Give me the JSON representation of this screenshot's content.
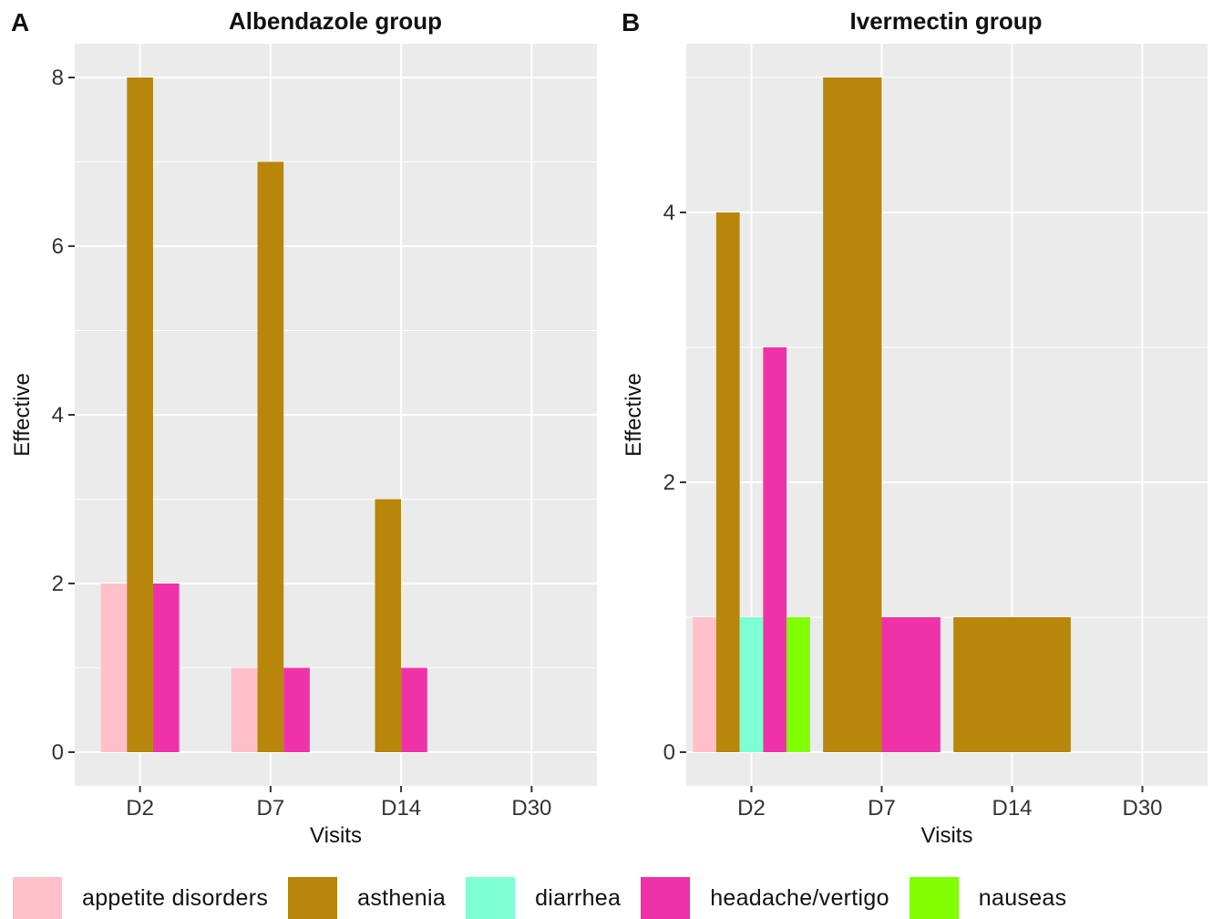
{
  "chart_data": [
    {
      "type": "bar",
      "panel_label": "A",
      "title": "Albendazole group",
      "xlabel": "Visits",
      "ylabel": "Effective",
      "categories": [
        "D2",
        "D7",
        "D14",
        "D30"
      ],
      "ylim": [
        -0.4,
        8.4
      ],
      "yticks": [
        0,
        2,
        4,
        6,
        8
      ],
      "grid": true,
      "bar_groups": [
        {
          "category": "D2",
          "bars": [
            {
              "series": "appetite disorders",
              "value": 2
            },
            {
              "series": "asthenia",
              "value": 8
            },
            {
              "series": "headache/vertigo",
              "value": 2
            }
          ]
        },
        {
          "category": "D7",
          "bars": [
            {
              "series": "appetite disorders",
              "value": 1
            },
            {
              "series": "asthenia",
              "value": 7
            },
            {
              "series": "headache/vertigo",
              "value": 1
            }
          ]
        },
        {
          "category": "D14",
          "bars": [
            {
              "series": "asthenia",
              "value": 3
            },
            {
              "series": "headache/vertigo",
              "value": 1
            }
          ]
        },
        {
          "category": "D30",
          "bars": []
        }
      ]
    },
    {
      "type": "bar",
      "panel_label": "B",
      "title": "Ivermectin group",
      "xlabel": "Visits",
      "ylabel": "Effective",
      "categories": [
        "D2",
        "D7",
        "D14",
        "D30"
      ],
      "ylim": [
        -0.25,
        5.25
      ],
      "yticks": [
        0,
        2,
        4
      ],
      "grid": true,
      "bar_groups": [
        {
          "category": "D2",
          "bars": [
            {
              "series": "appetite disorders",
              "value": 1
            },
            {
              "series": "asthenia",
              "value": 4
            },
            {
              "series": "diarrhea",
              "value": 1
            },
            {
              "series": "headache/vertigo",
              "value": 3
            },
            {
              "series": "nauseas",
              "value": 1
            }
          ]
        },
        {
          "category": "D7",
          "bars": [
            {
              "series": "asthenia",
              "value": 5
            },
            {
              "series": "headache/vertigo",
              "value": 1
            }
          ]
        },
        {
          "category": "D14",
          "bars": [
            {
              "series": "asthenia",
              "value": 1
            }
          ]
        },
        {
          "category": "D30",
          "bars": []
        }
      ]
    }
  ],
  "legend": {
    "placement": "bottom",
    "items": [
      {
        "label": "appetite disorders",
        "color": "#FFC0CB"
      },
      {
        "label": "asthenia",
        "color": "#B8860B"
      },
      {
        "label": "diarrhea",
        "color": "#7FFFD4"
      },
      {
        "label": "headache/vertigo",
        "color": "#F032A8"
      },
      {
        "label": "nauseas",
        "color": "#7FFF00"
      }
    ]
  },
  "colors": {
    "panel_background": "#EBEBEB",
    "grid": "#FFFFFF",
    "text": "#111111"
  }
}
